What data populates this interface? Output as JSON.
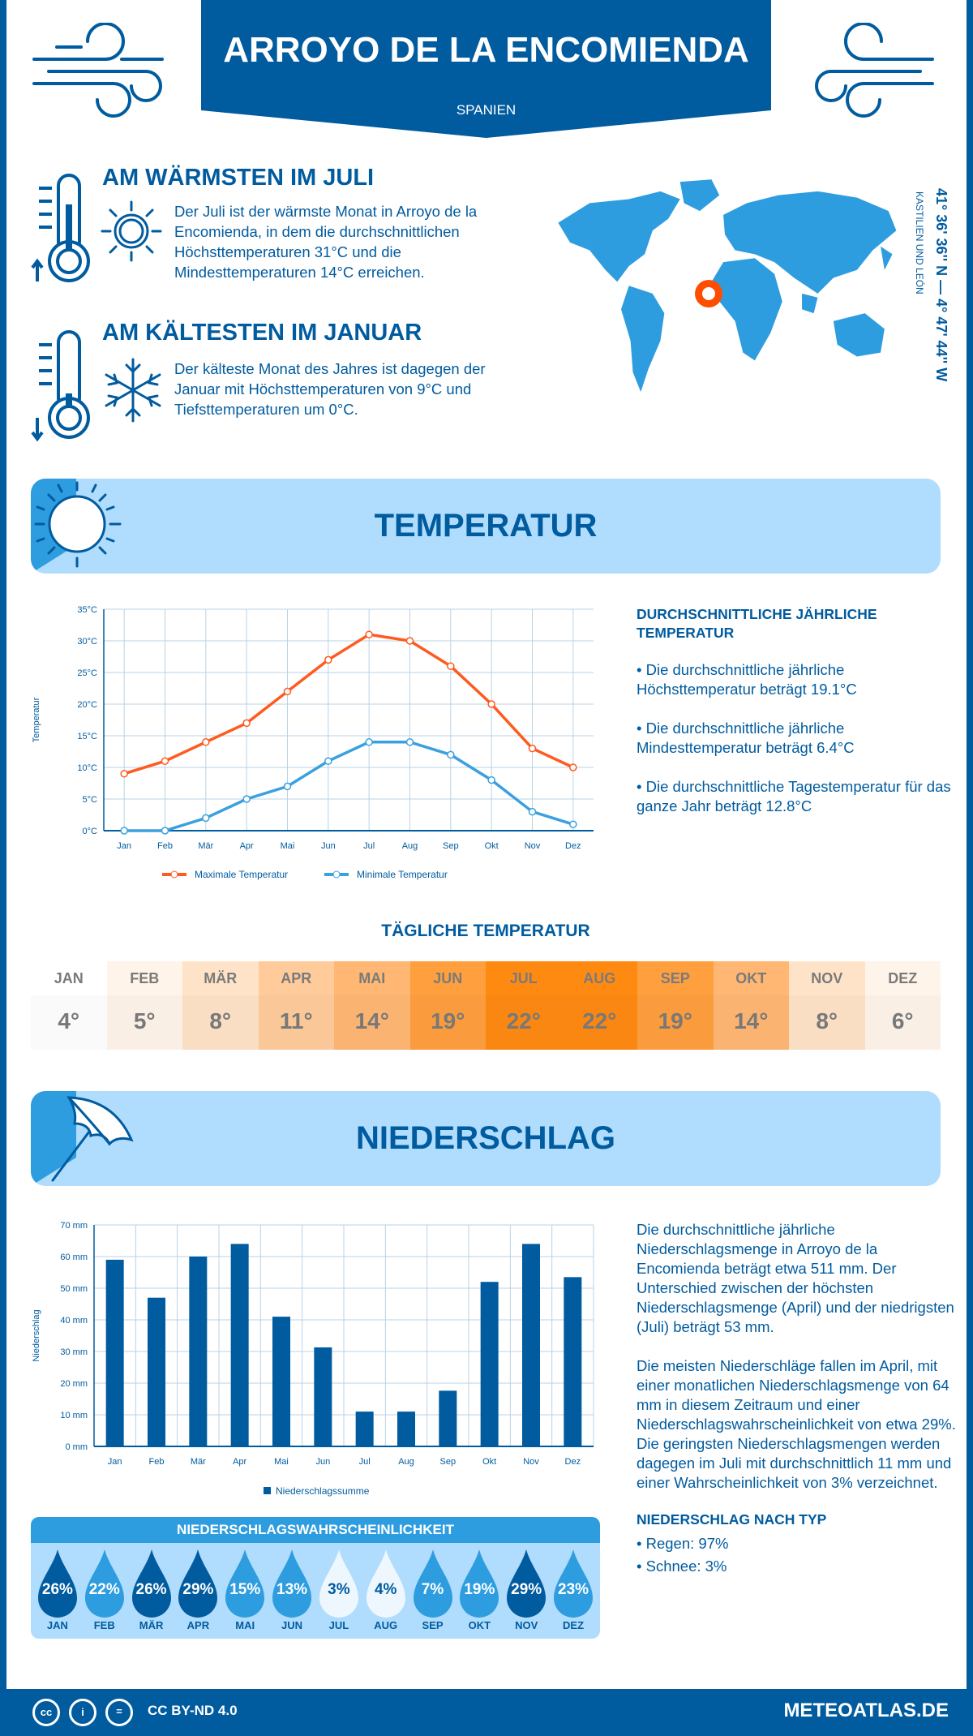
{
  "header": {
    "title": "ARROYO DE LA ENCOMIENDA",
    "country": "SPANIEN"
  },
  "location": {
    "coordinates": "41° 36' 36'' N — 4° 47' 44'' W",
    "region": "KASTILIEN UND LEÓN"
  },
  "warmest": {
    "heading": "AM WÄRMSTEN IM JULI",
    "text": "Der Juli ist der wärmste Monat in Arroyo de la Encomienda, in dem die durchschnittlichen Höchsttemperaturen 31°C und die Mindesttemperaturen 14°C erreichen."
  },
  "coldest": {
    "heading": "AM KÄLTESTEN IM JANUAR",
    "text": "Der kälteste Monat des Jahres ist dagegen der Januar mit Höchsttemperaturen von 9°C und Tiefsttemperaturen um 0°C."
  },
  "temperature": {
    "title": "TEMPERATUR",
    "annual_heading": "DURCHSCHNITTLICHE JÄHRLICHE TEMPERATUR",
    "bullets": [
      "• Die durchschnittliche jährliche Höchsttemperatur beträgt 19.1°C",
      "• Die durchschnittliche jährliche Mindesttemperatur beträgt 6.4°C",
      "• Die durchschnittliche Tagestemperatur für das ganze Jahr beträgt 12.8°C"
    ],
    "daily_heading": "TÄGLICHE TEMPERATUR",
    "daily": [
      {
        "m": "JAN",
        "v": "4°",
        "c": "#ffffff"
      },
      {
        "m": "FEB",
        "v": "5°",
        "c": "#fff4ea"
      },
      {
        "m": "MÄR",
        "v": "8°",
        "c": "#ffe3c8"
      },
      {
        "m": "APR",
        "v": "11°",
        "c": "#ffcb9b"
      },
      {
        "m": "MAI",
        "v": "14°",
        "c": "#ffb773"
      },
      {
        "m": "JUN",
        "v": "19°",
        "c": "#ff9f3e"
      },
      {
        "m": "JUL",
        "v": "22°",
        "c": "#ff8a12"
      },
      {
        "m": "AUG",
        "v": "22°",
        "c": "#ff8a12"
      },
      {
        "m": "SEP",
        "v": "19°",
        "c": "#ff9f3e"
      },
      {
        "m": "OKT",
        "v": "14°",
        "c": "#ffb773"
      },
      {
        "m": "NOV",
        "v": "8°",
        "c": "#ffe3c8"
      },
      {
        "m": "DEZ",
        "v": "6°",
        "c": "#fff4ea"
      }
    ]
  },
  "chart_data": [
    {
      "type": "line",
      "ylabel": "Temperatur",
      "ylim": [
        0,
        35
      ],
      "yticks": [
        "0°C",
        "5°C",
        "10°C",
        "15°C",
        "20°C",
        "25°C",
        "30°C",
        "35°C"
      ],
      "categories": [
        "Jan",
        "Feb",
        "Mär",
        "Apr",
        "Mai",
        "Jun",
        "Jul",
        "Aug",
        "Sep",
        "Okt",
        "Nov",
        "Dez"
      ],
      "series": [
        {
          "name": "Maximale Temperatur",
          "color": "#ff5a1f",
          "values": [
            9,
            11,
            14,
            17,
            22,
            27,
            31,
            30,
            26,
            20,
            13,
            10
          ]
        },
        {
          "name": "Minimale Temperatur",
          "color": "#3aa0e0",
          "values": [
            0,
            0,
            2,
            5,
            7,
            11,
            14,
            14,
            12,
            8,
            3,
            1
          ]
        }
      ],
      "grid": true,
      "legend": "bottom"
    },
    {
      "type": "bar",
      "ylabel": "Niederschlag",
      "ylim": [
        0,
        70
      ],
      "yticks": [
        "0 mm",
        "10 mm",
        "20 mm",
        "30 mm",
        "40 mm",
        "50 mm",
        "60 mm",
        "70 mm"
      ],
      "categories": [
        "Jan",
        "Feb",
        "Mär",
        "Apr",
        "Mai",
        "Jun",
        "Jul",
        "Aug",
        "Sep",
        "Okt",
        "Nov",
        "Dez"
      ],
      "series": [
        {
          "name": "Niederschlagssumme",
          "color": "#005b9f",
          "values": [
            59,
            47,
            60,
            64,
            41,
            31.3,
            11,
            11,
            17.6,
            52,
            64,
            53.5
          ]
        }
      ],
      "grid": true,
      "legend": "bottom"
    }
  ],
  "precipitation": {
    "title": "NIEDERSCHLAG",
    "text1": "Die durchschnittliche jährliche Niederschlagsmenge in Arroyo de la Encomienda beträgt etwa 511 mm. Der Unterschied zwischen der höchsten Niederschlagsmenge (April) und der niedrigsten (Juli) beträgt 53 mm.",
    "text2": "Die meisten Niederschläge fallen im April, mit einer monatlichen Niederschlagsmenge von 64 mm in diesem Zeitraum und einer Niederschlagswahrscheinlichkeit von etwa 29%. Die geringsten Niederschlagsmengen werden dagegen im Juli mit durchschnittlich 11 mm und einer Wahrscheinlichkeit von 3% verzeichnet.",
    "type_heading": "NIEDERSCHLAG NACH TYP",
    "types": [
      "• Regen: 97%",
      "• Schnee: 3%"
    ],
    "prob_heading": "NIEDERSCHLAGSWAHRSCHEINLICHKEIT",
    "prob": [
      {
        "m": "JAN",
        "v": "26%",
        "c": "#005b9f"
      },
      {
        "m": "FEB",
        "v": "22%",
        "c": "#2e9ddf"
      },
      {
        "m": "MÄR",
        "v": "26%",
        "c": "#005b9f"
      },
      {
        "m": "APR",
        "v": "29%",
        "c": "#005b9f"
      },
      {
        "m": "MAI",
        "v": "15%",
        "c": "#2e9ddf"
      },
      {
        "m": "JUN",
        "v": "13%",
        "c": "#2e9ddf"
      },
      {
        "m": "JUL",
        "v": "3%",
        "c": "#eef7fe"
      },
      {
        "m": "AUG",
        "v": "4%",
        "c": "#eef7fe"
      },
      {
        "m": "SEP",
        "v": "7%",
        "c": "#2e9ddf"
      },
      {
        "m": "OKT",
        "v": "19%",
        "c": "#2e9ddf"
      },
      {
        "m": "NOV",
        "v": "29%",
        "c": "#005b9f"
      },
      {
        "m": "DEZ",
        "v": "23%",
        "c": "#2e9ddf"
      }
    ]
  },
  "footer": {
    "license": "CC BY-ND 4.0",
    "site": "METEOATLAS.DE"
  },
  "icons": [
    "wind-icon",
    "thermometer-icon",
    "sun-icon",
    "snowflake-icon",
    "world-map",
    "location-marker-icon",
    "umbrella-icon",
    "raindrop-icon",
    "cc-icon"
  ]
}
